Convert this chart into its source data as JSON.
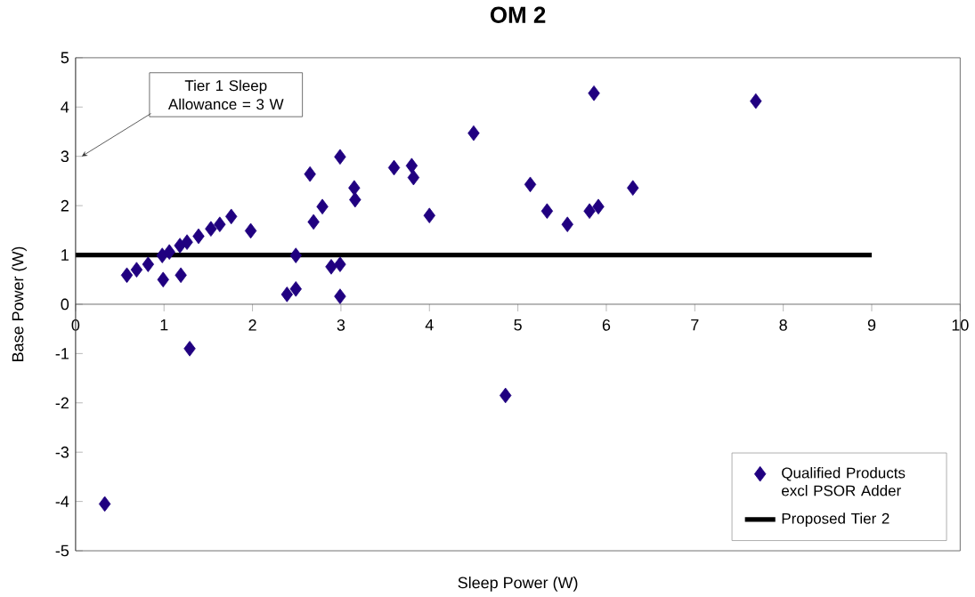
{
  "chart_data": {
    "type": "scatter",
    "title": "OM 2",
    "xlabel": "Sleep Power (W)",
    "ylabel": "Base Power (W)",
    "xlim": [
      0,
      10
    ],
    "ylim": [
      -5,
      5
    ],
    "xticks": [
      0,
      1,
      2,
      3,
      4,
      5,
      6,
      7,
      8,
      9,
      10
    ],
    "yticks": [
      -5,
      -4,
      -3,
      -2,
      -1,
      0,
      1,
      2,
      3,
      4,
      5
    ],
    "legend": "bottom right",
    "marker": "diamond",
    "annotations": [
      "Tier 1 Sleep Allowance = 3 W"
    ],
    "series": [
      {
        "name": "Qualified Products excl PSOR Adder",
        "color": "#200080",
        "x": [
          0.58,
          0.69,
          0.82,
          0.98,
          0.99,
          1.06,
          1.18,
          1.19,
          1.26,
          1.39,
          1.53,
          1.63,
          1.76,
          1.98,
          2.39,
          2.49,
          2.49,
          2.65,
          2.69,
          2.79,
          2.89,
          2.99,
          2.99,
          2.99,
          3.15,
          3.16,
          3.6,
          3.8,
          3.82,
          4.0,
          4.5,
          5.86,
          7.69,
          5.14,
          5.33,
          5.56,
          5.81,
          5.91,
          6.3,
          1.29,
          0.33,
          4.86
        ],
        "values": [
          0.59,
          0.7,
          0.81,
          0.99,
          0.5,
          1.06,
          1.19,
          0.59,
          1.26,
          1.38,
          1.53,
          1.62,
          1.78,
          1.49,
          0.2,
          0.31,
          0.99,
          2.64,
          1.67,
          1.98,
          0.76,
          0.81,
          0.16,
          2.99,
          2.36,
          2.12,
          2.77,
          2.81,
          2.57,
          1.8,
          3.47,
          4.28,
          4.12,
          2.43,
          1.89,
          1.62,
          1.89,
          1.98,
          2.36,
          -0.9,
          -4.05,
          -1.85
        ]
      },
      {
        "name": "Proposed Tier 2",
        "type": "line",
        "color": "#000000",
        "line_style": "solid",
        "marker": "none",
        "x": [
          0,
          9
        ],
        "values": [
          1,
          1
        ]
      }
    ]
  }
}
